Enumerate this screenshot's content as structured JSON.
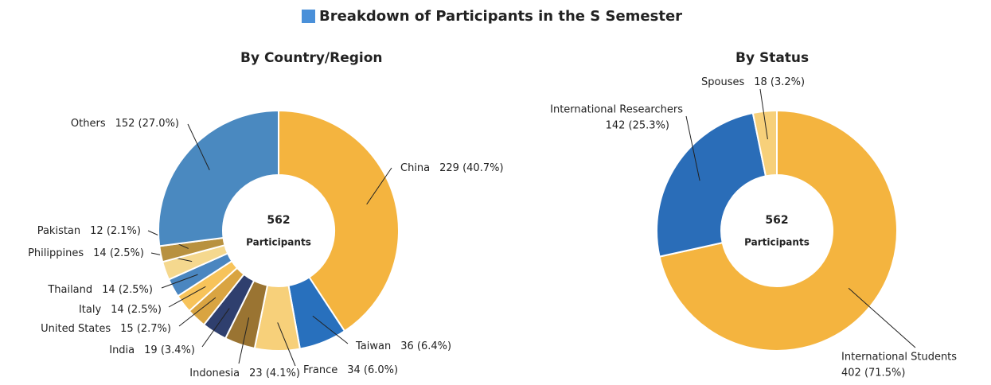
{
  "title": "Breakdown of Participants in the S Semester",
  "chart_data": [
    {
      "type": "pie",
      "title": "By Country/Region",
      "categories": [
        "China",
        "Taiwan",
        "France",
        "Indonesia",
        "India",
        "United States",
        "Italy",
        "Thailand",
        "Philippines",
        "Pakistan",
        "Others"
      ],
      "values": [
        229,
        36,
        34,
        23,
        19,
        15,
        14,
        14,
        14,
        12,
        152
      ],
      "value_labels": [
        "229 (40.7%)",
        "36 (6.4%)",
        "34 (6.0%)",
        "23 (4.1%)",
        "19 (3.4%)",
        "15 (2.7%)",
        "14 (2.5%)",
        "14 (2.5%)",
        "14 (2.5%)",
        "12 (2.1%)",
        "152 (27.0%)"
      ],
      "colors": [
        "#f4b43f",
        "#2870bd",
        "#f7d07a",
        "#9a7432",
        "#2f3f6e",
        "#d9a441",
        "#f7c35a",
        "#4a86c0",
        "#f5d88e",
        "#b8913f",
        "#4a89c0"
      ],
      "center_value": 562,
      "center_label": "Participants"
    },
    {
      "type": "pie",
      "title": "By Status",
      "categories": [
        "International Students",
        "International Researchers",
        "Spouses"
      ],
      "values": [
        402,
        142,
        18
      ],
      "value_labels": [
        "402 (71.5%)",
        "142 (25.3%)",
        "18 (3.2%)"
      ],
      "colors": [
        "#f4b43f",
        "#2a6db8",
        "#f7d07a"
      ],
      "center_value": 562,
      "center_label": "Participants"
    }
  ]
}
